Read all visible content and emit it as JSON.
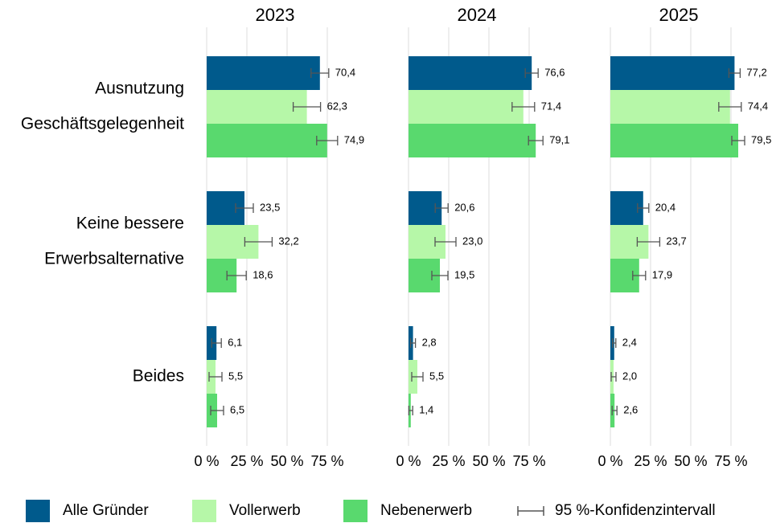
{
  "chart_data": {
    "type": "bar",
    "orientation": "horizontal",
    "categories": [
      [
        "Ausnutzung",
        "Geschäftsgelegenheit"
      ],
      [
        "Keine bessere",
        "Erwerbsalternative"
      ],
      [
        "Beides"
      ]
    ],
    "legend": [
      {
        "name": "Alle Gründer",
        "color": "#005a8c"
      },
      {
        "name": "Vollerwerb",
        "color": "#b6f7a8"
      },
      {
        "name": "Nebenerwerb",
        "color": "#59d96e"
      }
    ],
    "error_bar_label": "95 %-Konfidenzintervall",
    "error_color": "#555555",
    "xlim": [
      0,
      100
    ],
    "xticks": [
      {
        "value": 0,
        "label": "0 %"
      },
      {
        "value": 25,
        "label": "25 %"
      },
      {
        "value": 50,
        "label": "50 %"
      },
      {
        "value": 75,
        "label": "75 %"
      }
    ],
    "grid": true,
    "facets": [
      {
        "title": "2023",
        "series": [
          {
            "values": [
              70.4,
              23.5,
              6.1
            ],
            "value_labels": [
              "70,4",
              "23,5",
              "6,1"
            ],
            "errors": [
              5.5,
              5.5,
              3
            ]
          },
          {
            "values": [
              62.3,
              32.2,
              5.5
            ],
            "value_labels": [
              "62,3",
              "32,2",
              "5,5"
            ],
            "errors": [
              8.5,
              8.5,
              4
            ]
          },
          {
            "values": [
              74.9,
              18.6,
              6.5
            ],
            "value_labels": [
              "74,9",
              "18,6",
              "6,5"
            ],
            "errors": [
              6.5,
              6,
              4
            ]
          }
        ]
      },
      {
        "title": "2024",
        "series": [
          {
            "values": [
              76.6,
              20.6,
              2.8
            ],
            "value_labels": [
              "76,6",
              "20,6",
              "2,8"
            ],
            "errors": [
              4,
              4,
              1.5
            ]
          },
          {
            "values": [
              71.4,
              23.0,
              5.5
            ],
            "value_labels": [
              "71,4",
              "23,0",
              "5,5"
            ],
            "errors": [
              7,
              6.5,
              3.5
            ]
          },
          {
            "values": [
              79.1,
              19.5,
              1.4
            ],
            "value_labels": [
              "79,1",
              "19,5",
              "1,4"
            ],
            "errors": [
              4.5,
              5,
              1.2
            ]
          }
        ]
      },
      {
        "title": "2025",
        "series": [
          {
            "values": [
              77.2,
              20.4,
              2.4
            ],
            "value_labels": [
              "77,2",
              "20,4",
              "2,4"
            ],
            "errors": [
              3.5,
              3.5,
              1
            ]
          },
          {
            "values": [
              74.4,
              23.7,
              2.0
            ],
            "value_labels": [
              "74,4",
              "23,7",
              "2,0"
            ],
            "errors": [
              7,
              7,
              1.5
            ]
          },
          {
            "values": [
              79.5,
              17.9,
              2.6
            ],
            "value_labels": [
              "79,5",
              "17,9",
              "2,6"
            ],
            "errors": [
              4,
              4,
              1.5
            ]
          }
        ]
      }
    ]
  }
}
